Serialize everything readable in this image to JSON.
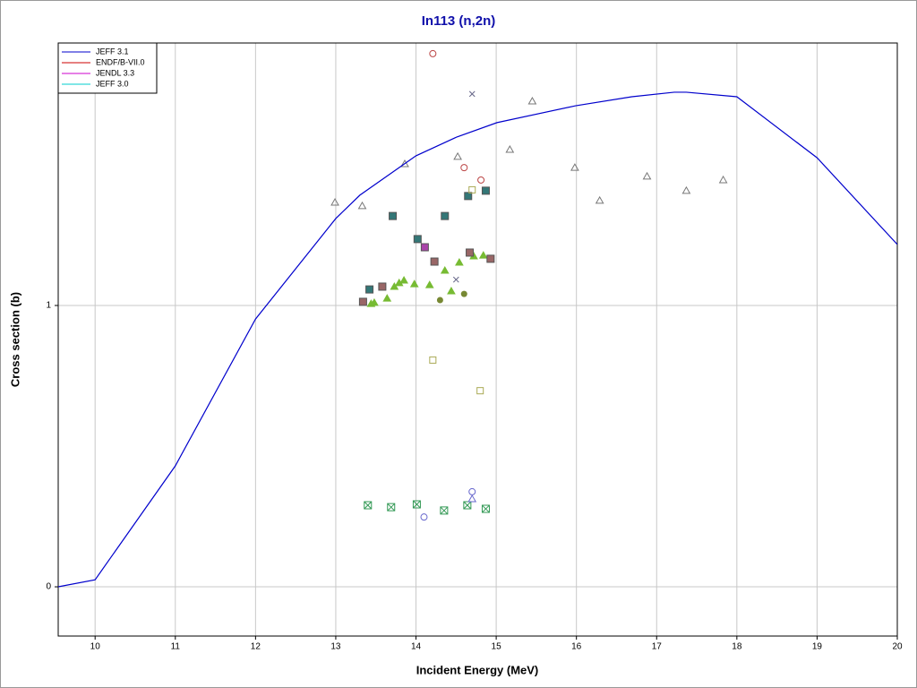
{
  "chart_data": {
    "type": "line",
    "title": "In113 (n,2n)",
    "x_label": "Incident Energy (MeV)",
    "y_label": "Cross section (b)",
    "xlim": [
      9.54,
      20
    ],
    "ylim": [
      -0.175,
      1.933
    ],
    "xticks": [
      10,
      11,
      12,
      13,
      14,
      15,
      16,
      17,
      18,
      19,
      20
    ],
    "yticks": [
      0,
      1
    ],
    "grid": true,
    "legend": "top-left",
    "x": [
      9.54,
      10,
      11,
      12,
      13,
      13.3,
      14,
      14.51,
      15.01,
      15.99,
      16.69,
      17.22,
      17.37,
      18,
      19,
      20
    ],
    "series": [
      {
        "name": "JEFF 3.1",
        "color": "#0000cc",
        "values": [
          0,
          0.025,
          0.43,
          0.952,
          1.309,
          1.392,
          1.532,
          1.599,
          1.65,
          1.71,
          1.742,
          1.758,
          1.758,
          1.742,
          1.525,
          1.217
        ]
      },
      {
        "name": "ENDF/B-VII.0",
        "color": "#cc0000",
        "values": [
          null,
          null,
          null,
          null,
          null,
          null,
          null,
          null,
          null,
          null,
          null,
          null,
          null,
          null,
          null,
          null
        ]
      },
      {
        "name": "JENDL 3.3",
        "color": "#cc00cc",
        "values": [
          null,
          null,
          null,
          null,
          null,
          null,
          null,
          null,
          null,
          null,
          null,
          null,
          null,
          null,
          null,
          null
        ]
      },
      {
        "name": "JEFF 3.0",
        "color": "#00cccc",
        "values": [
          null,
          null,
          null,
          null,
          null,
          null,
          null,
          null,
          null,
          null,
          null,
          null,
          null,
          null,
          null,
          null
        ]
      }
    ],
    "point_sets": [
      {
        "shape": "triangle-open",
        "color": "#777777",
        "x": [
          12.99,
          13.33,
          13.86,
          14.52,
          15.17,
          15.45,
          15.98,
          16.29,
          16.88,
          17.37,
          17.83
        ],
        "values": [
          1.366,
          1.354,
          1.503,
          1.529,
          1.554,
          1.726,
          1.49,
          1.373,
          1.459,
          1.408,
          1.446
        ]
      },
      {
        "shape": "triangle-filled",
        "color": "#77bb33",
        "x": [
          13.44,
          13.48,
          13.64,
          13.73,
          13.79,
          13.85,
          13.98,
          14.17,
          14.36,
          14.44,
          14.54,
          14.72,
          14.84
        ],
        "values": [
          1.006,
          1.01,
          1.025,
          1.067,
          1.08,
          1.089,
          1.076,
          1.073,
          1.124,
          1.051,
          1.153,
          1.175,
          1.178
        ]
      },
      {
        "shape": "square-filled",
        "color": "#337777",
        "x": [
          13.42,
          13.71,
          14.02,
          14.36,
          14.65,
          14.87
        ],
        "values": [
          1.057,
          1.318,
          1.236,
          1.318,
          1.389,
          1.408
        ]
      },
      {
        "shape": "square-filled",
        "color": "#996666",
        "x": [
          13.34,
          13.58,
          14.23,
          14.67,
          14.93
        ],
        "values": [
          1.013,
          1.067,
          1.156,
          1.188,
          1.166
        ]
      },
      {
        "shape": "square-filled",
        "color": "#aa44aa",
        "x": [
          14.11
        ],
        "values": [
          1.207
        ]
      },
      {
        "shape": "circle-filled",
        "color": "#778833",
        "x": [
          14.3,
          14.6
        ],
        "values": [
          1.019,
          1.041
        ]
      },
      {
        "shape": "circle-open",
        "color": "#bb4444",
        "x": [
          14.21,
          14.6,
          14.81
        ],
        "values": [
          1.895,
          1.49,
          1.446
        ]
      },
      {
        "shape": "cross",
        "color": "#666688",
        "x": [
          14.7,
          14.5
        ],
        "values": [
          1.752,
          1.092
        ]
      },
      {
        "shape": "square-open",
        "color": "#aaaa55",
        "x": [
          14.21,
          14.8,
          14.7
        ],
        "values": [
          0.806,
          0.697,
          1.411
        ]
      },
      {
        "shape": "boxed-x",
        "color": "#339955",
        "x": [
          13.4,
          13.69,
          14.01,
          14.35,
          14.64,
          14.87
        ],
        "values": [
          0.29,
          0.283,
          0.293,
          0.271,
          0.29,
          0.277
        ]
      },
      {
        "shape": "circle-open",
        "color": "#6666cc",
        "x": [
          14.7,
          14.1
        ],
        "values": [
          0.338,
          0.248
        ]
      },
      {
        "shape": "triangle-open",
        "color": "#6666cc",
        "x": [
          14.7
        ],
        "values": [
          0.312
        ]
      }
    ]
  }
}
